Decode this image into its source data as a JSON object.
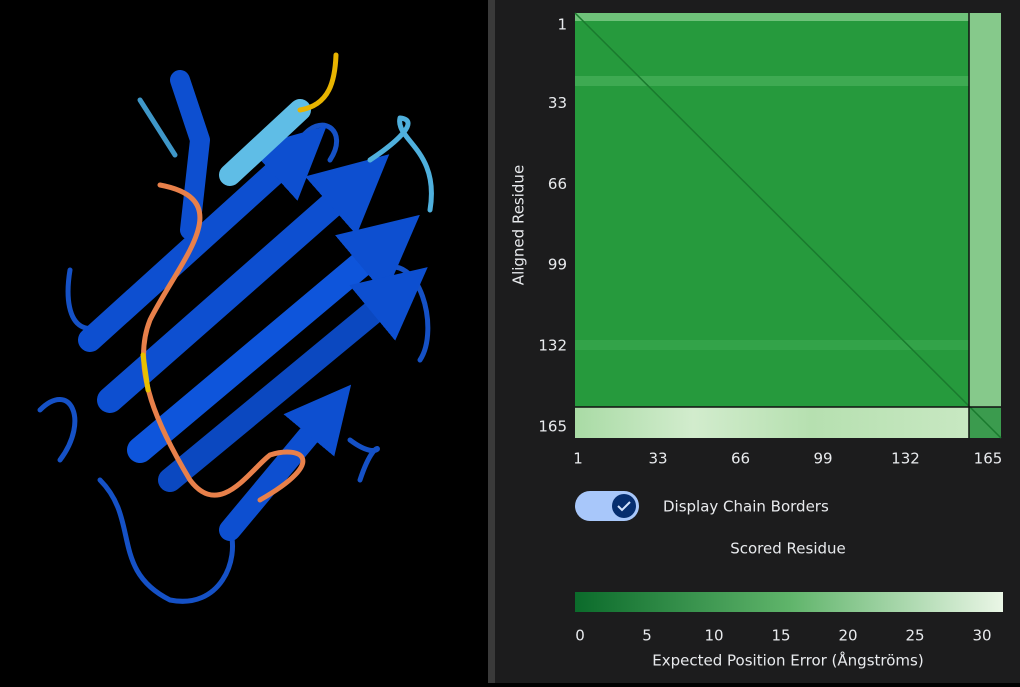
{
  "pae_plot": {
    "y_axis_label": "Aligned Residue",
    "y_ticks": [
      1,
      33,
      66,
      99,
      132,
      165
    ],
    "x_ticks": [
      1,
      33,
      66,
      99,
      132,
      165
    ],
    "x_axis_label": "Scored Residue"
  },
  "chain_border_toggle": {
    "label": "Display Chain Borders",
    "checked": true
  },
  "colorbar": {
    "ticks": [
      0,
      5,
      10,
      15,
      20,
      25,
      30
    ],
    "label": "Expected Position Error (Ångströms)"
  }
}
